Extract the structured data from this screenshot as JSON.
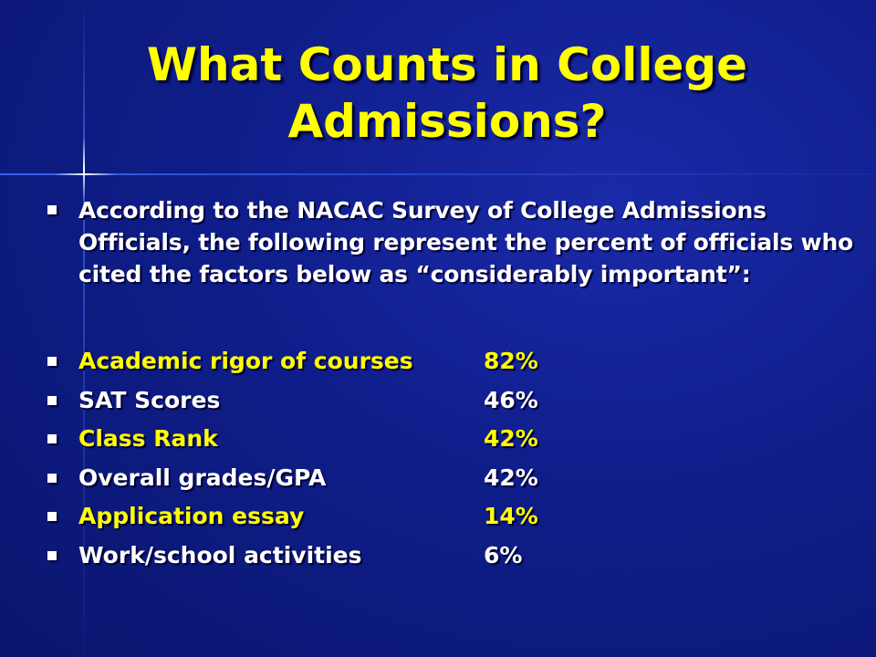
{
  "slide": {
    "title": "What Counts in College Admissions?",
    "intro": "According to the NACAC Survey of College Admissions Officials, the following represent the percent of officials who cited the factors below as “considerably important”:",
    "colors": {
      "background": "#0f1d8a",
      "accent": "#ffff00",
      "text": "#ffffff"
    },
    "factors": [
      {
        "label": "Academic rigor of courses",
        "value": "82%",
        "color": "yellow"
      },
      {
        "label": "SAT Scores",
        "value": "46%",
        "color": "white"
      },
      {
        "label": "Class Rank",
        "value": "42%",
        "color": "yellow"
      },
      {
        "label": "Overall grades/GPA",
        "value": "42%",
        "color": "white"
      },
      {
        "label": "Application essay",
        "value": "14%",
        "color": "yellow"
      },
      {
        "label": "Work/school activities",
        "value": "6%",
        "color": "white"
      }
    ]
  }
}
